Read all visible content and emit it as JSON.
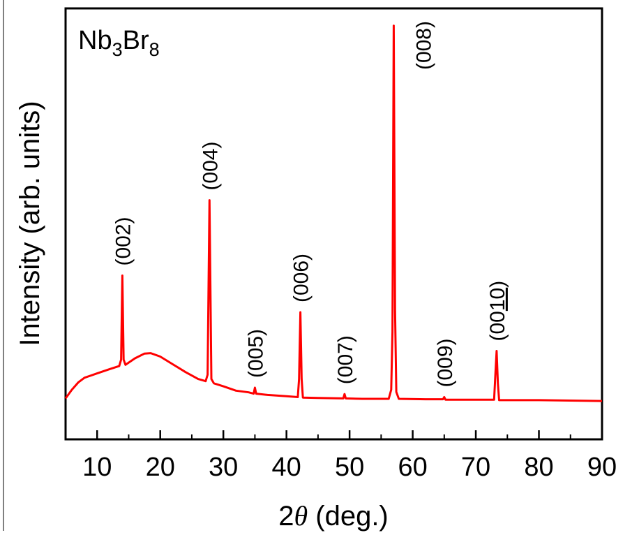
{
  "chart_data": {
    "type": "line",
    "title": "",
    "sample_label": {
      "main": "Nb",
      "sub1": "3",
      "mid": "Br",
      "sub2": "8"
    },
    "xlabel": {
      "prefix": "2",
      "symbol": "θ",
      "suffix": " (deg.)"
    },
    "ylabel": "Intensity (arb. units)",
    "xlim": [
      5,
      90
    ],
    "ylim": [
      0,
      100
    ],
    "xticks": [
      10,
      20,
      30,
      40,
      50,
      60,
      70,
      80,
      90
    ],
    "xticks_minor": [
      15,
      25,
      35,
      45,
      55,
      65,
      75,
      85
    ],
    "yticks_shown": false,
    "grid": false,
    "series": [
      {
        "color": "#ff0000",
        "points": [
          [
            5,
            9.5
          ],
          [
            6,
            11.5
          ],
          [
            7,
            13.2
          ],
          [
            8,
            14.3
          ],
          [
            10,
            15.3
          ],
          [
            12,
            16.3
          ],
          [
            13.5,
            17.0
          ],
          [
            13.8,
            18.5
          ],
          [
            14.0,
            38.0
          ],
          [
            14.2,
            18.5
          ],
          [
            14.5,
            17.3
          ],
          [
            16,
            18.8
          ],
          [
            17.5,
            19.9
          ],
          [
            18.5,
            20.0
          ],
          [
            20,
            19.2
          ],
          [
            22,
            17.4
          ],
          [
            24,
            15.6
          ],
          [
            26,
            14.0
          ],
          [
            27.2,
            13.5
          ],
          [
            27.5,
            15.0
          ],
          [
            27.8,
            55.5
          ],
          [
            28.1,
            14.0
          ],
          [
            28.5,
            13.0
          ],
          [
            30,
            12.3
          ],
          [
            32,
            11.3
          ],
          [
            34,
            10.9
          ],
          [
            34.8,
            10.6
          ],
          [
            35.0,
            12.0
          ],
          [
            35.2,
            10.6
          ],
          [
            37,
            10.3
          ],
          [
            40,
            10.0
          ],
          [
            41.8,
            9.8
          ],
          [
            42.0,
            14.0
          ],
          [
            42.2,
            29.5
          ],
          [
            42.4,
            14.0
          ],
          [
            42.6,
            9.7
          ],
          [
            45,
            9.6
          ],
          [
            49.0,
            9.5
          ],
          [
            49.2,
            10.5
          ],
          [
            49.4,
            9.5
          ],
          [
            52,
            9.4
          ],
          [
            56.2,
            9.4
          ],
          [
            56.6,
            11.5
          ],
          [
            56.8,
            25.0
          ],
          [
            57.0,
            96.0
          ],
          [
            57.2,
            30.0
          ],
          [
            57.4,
            11.0
          ],
          [
            57.8,
            9.4
          ],
          [
            62,
            9.3
          ],
          [
            64.8,
            9.3
          ],
          [
            65.0,
            9.8
          ],
          [
            65.2,
            9.2
          ],
          [
            70,
            9.2
          ],
          [
            72.9,
            9.2
          ],
          [
            73.1,
            15.0
          ],
          [
            73.3,
            20.5
          ],
          [
            73.5,
            13.0
          ],
          [
            73.7,
            9.1
          ],
          [
            80,
            9.1
          ],
          [
            90,
            8.9
          ]
        ]
      }
    ],
    "annotations": [
      {
        "text": "(002)",
        "x": 14.0
      },
      {
        "text": "(004)",
        "x": 27.8
      },
      {
        "text": "(005)",
        "x": 35.0
      },
      {
        "text": "(006)",
        "x": 42.2
      },
      {
        "text": "(007)",
        "x": 49.2
      },
      {
        "text": "(008)",
        "x": 57.0
      },
      {
        "text": "(009)",
        "x": 65.0
      },
      {
        "text": "(0010)",
        "x": 73.3,
        "underline": "10"
      }
    ]
  }
}
